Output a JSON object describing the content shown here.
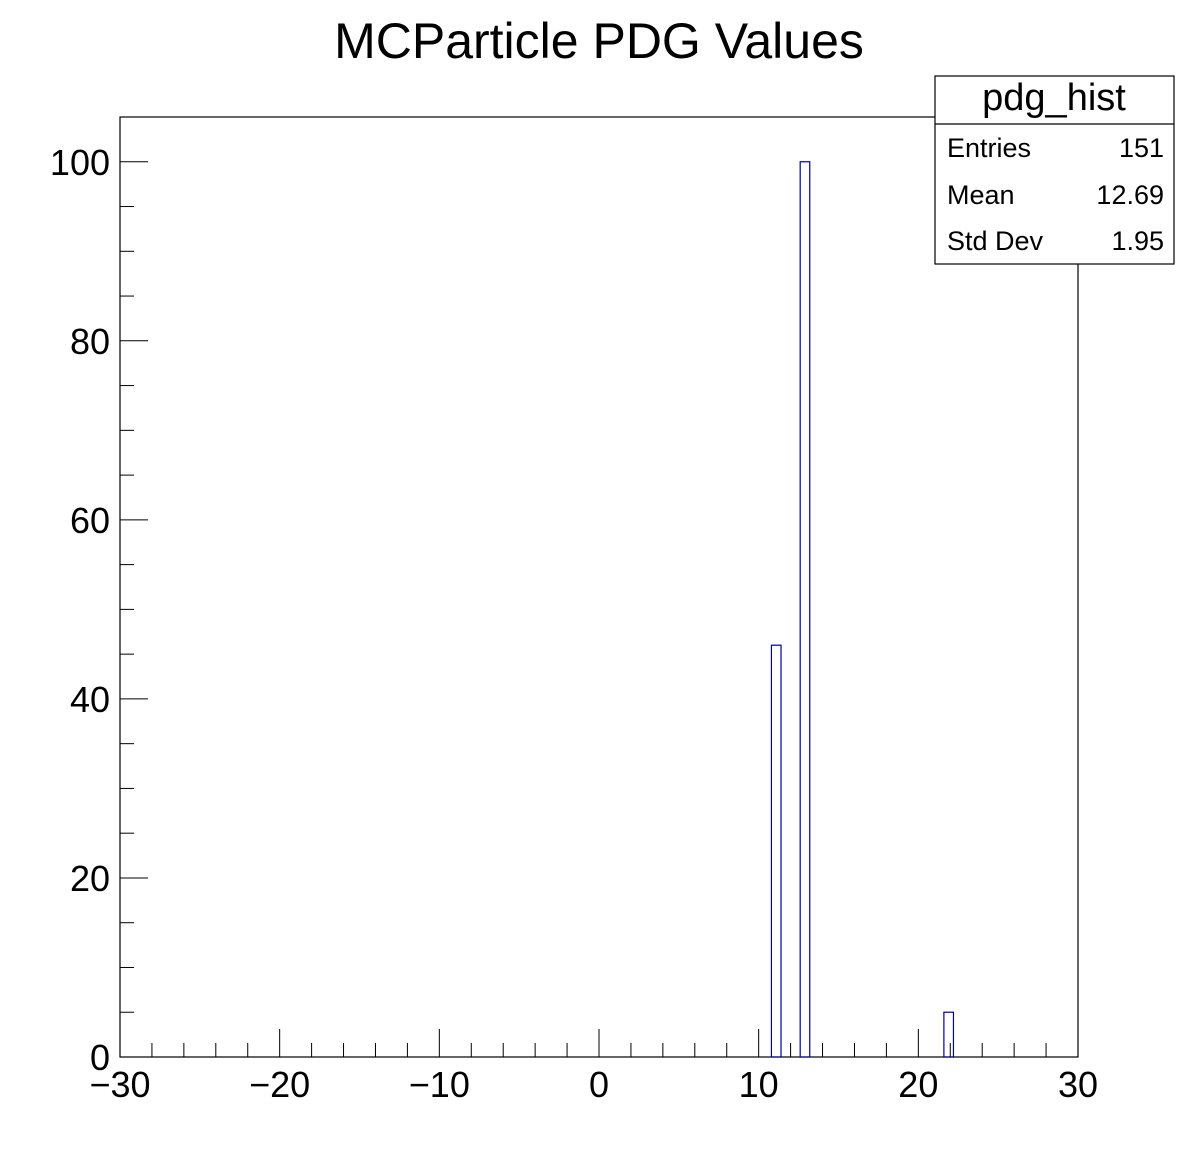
{
  "chart_data": {
    "type": "bar",
    "title": "MCParticle PDG Values",
    "xlabel": "",
    "ylabel": "",
    "xlim": [
      -30,
      30
    ],
    "ylim": [
      0,
      105
    ],
    "x_ticks": [
      -30,
      -20,
      -10,
      0,
      10,
      20,
      30
    ],
    "x_tick_labels": [
      "−30",
      "−20",
      "−10",
      "0",
      "10",
      "20",
      "30"
    ],
    "y_ticks": [
      0,
      20,
      40,
      60,
      80,
      100
    ],
    "y_tick_labels": [
      "0",
      "20",
      "40",
      "60",
      "80",
      "100"
    ],
    "bin_width": 0.6,
    "bins": [
      {
        "low": 10.8,
        "high": 11.4,
        "value": 46
      },
      {
        "low": 12.6,
        "high": 13.2,
        "value": 100
      },
      {
        "low": 21.6,
        "high": 22.2,
        "value": 5
      }
    ],
    "line_color": "#000099",
    "grid": false,
    "legend": "none"
  },
  "stats_box": {
    "name": "pdg_hist",
    "placement": "top-right",
    "rows": [
      {
        "label": "Entries",
        "value": "151"
      },
      {
        "label": "Mean",
        "value": "12.69"
      },
      {
        "label": "Std Dev",
        "value": "1.95"
      }
    ]
  }
}
